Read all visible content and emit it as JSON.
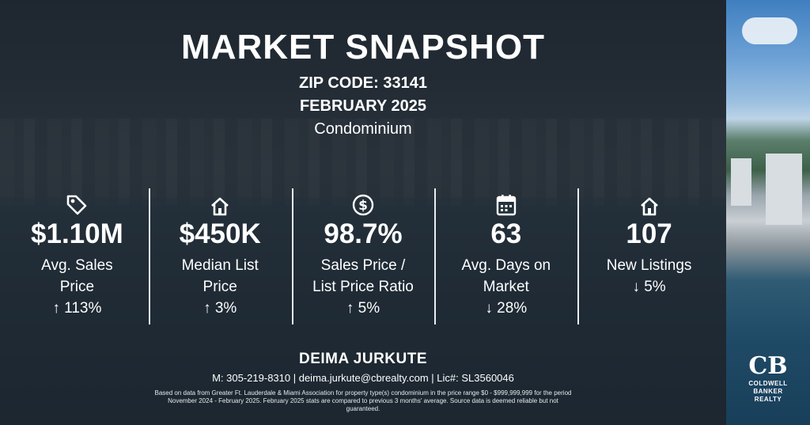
{
  "title": "MARKET SNAPSHOT",
  "zip_code": "ZIP CODE: 33141",
  "period": "FEBRUARY 2025",
  "property_type": "Condominium",
  "stats": [
    {
      "icon": "price-tag-icon",
      "value": "$1.10M",
      "label_line1": "Avg. Sales",
      "label_line2": "Price",
      "change": "↑ 113%"
    },
    {
      "icon": "house-icon",
      "value": "$450K",
      "label_line1": "Median List",
      "label_line2": "Price",
      "change": "↑ 3%"
    },
    {
      "icon": "dollar-circle-icon",
      "value": "98.7%",
      "label_line1": "Sales Price /",
      "label_line2": "List Price Ratio",
      "change": "↑ 5%"
    },
    {
      "icon": "calendar-icon",
      "value": "63",
      "label_line1": "Avg. Days on",
      "label_line2": "Market",
      "change": "↓ 28%"
    },
    {
      "icon": "house-icon",
      "value": "107",
      "label_line1": "New Listings",
      "label_line2": "",
      "change": "↓ 5%"
    }
  ],
  "agent": {
    "name": "DEIMA JURKUTE",
    "contact": "M: 305-219-8310 | deima.jurkute@cbrealty.com | Lic#: SL3560046"
  },
  "disclaimer": "Based on data from Greater Ft. Lauderdale & Miami Association for property type(s) condominium in the price range $0 - $999,999,999 for the period November 2024 - February 2025. February 2025 stats are compared to previous 3 months' average. Source data is deemed reliable but not guaranteed.",
  "brand": {
    "line1": "COLDWELL",
    "line2": "BANKER",
    "line3": "REALTY",
    "mark": "CB"
  }
}
